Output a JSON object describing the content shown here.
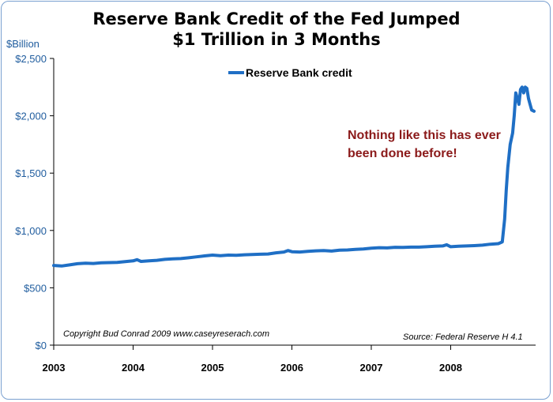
{
  "chart_data": {
    "type": "line",
    "title_line1": "Reserve Bank Credit of the Fed Jumped",
    "title_line2": "$1 Trillion in 3 Months",
    "ylabel": "$Billion",
    "ylim": [
      0,
      2500
    ],
    "yticks": [
      {
        "v": 0,
        "label": "$0"
      },
      {
        "v": 500,
        "label": "$500"
      },
      {
        "v": 1000,
        "label": "$1,000"
      },
      {
        "v": 1500,
        "label": "$1,500"
      },
      {
        "v": 2000,
        "label": "$2,000"
      },
      {
        "v": 2500,
        "label": "$2,500"
      }
    ],
    "xlim": [
      2003.0,
      2009.07
    ],
    "xticks": [
      {
        "v": 2003,
        "label": "2003"
      },
      {
        "v": 2004,
        "label": "2004"
      },
      {
        "v": 2005,
        "label": "2005"
      },
      {
        "v": 2006,
        "label": "2006"
      },
      {
        "v": 2007,
        "label": "2007"
      },
      {
        "v": 2008,
        "label": "2008"
      }
    ],
    "grid": false,
    "legend_position": "top-center",
    "series": [
      {
        "name": "Reserve Bank credit",
        "color": "#1f6fc5",
        "x": [
          2003.0,
          2003.1,
          2003.2,
          2003.3,
          2003.4,
          2003.5,
          2003.6,
          2003.7,
          2003.8,
          2003.9,
          2004.0,
          2004.05,
          2004.1,
          2004.2,
          2004.3,
          2004.4,
          2004.5,
          2004.6,
          2004.7,
          2004.8,
          2004.9,
          2005.0,
          2005.1,
          2005.2,
          2005.3,
          2005.4,
          2005.5,
          2005.6,
          2005.7,
          2005.8,
          2005.9,
          2005.95,
          2006.0,
          2006.1,
          2006.2,
          2006.3,
          2006.4,
          2006.5,
          2006.6,
          2006.7,
          2006.8,
          2006.9,
          2007.0,
          2007.1,
          2007.2,
          2007.3,
          2007.4,
          2007.5,
          2007.6,
          2007.7,
          2007.8,
          2007.9,
          2007.95,
          2008.0,
          2008.1,
          2008.2,
          2008.3,
          2008.4,
          2008.5,
          2008.6,
          2008.65,
          2008.68,
          2008.7,
          2008.72,
          2008.75,
          2008.78,
          2008.8,
          2008.82,
          2008.84,
          2008.86,
          2008.88,
          2008.9,
          2008.92,
          2008.94,
          2008.96,
          2008.98,
          2009.0,
          2009.02,
          2009.05
        ],
        "values": [
          695,
          690,
          700,
          710,
          715,
          712,
          718,
          720,
          722,
          728,
          735,
          745,
          730,
          735,
          740,
          748,
          752,
          755,
          762,
          770,
          778,
          785,
          780,
          785,
          783,
          788,
          790,
          793,
          795,
          805,
          812,
          825,
          815,
          812,
          818,
          822,
          825,
          820,
          828,
          830,
          835,
          838,
          845,
          850,
          848,
          853,
          852,
          855,
          855,
          858,
          862,
          865,
          875,
          858,
          862,
          865,
          868,
          872,
          880,
          885,
          900,
          1100,
          1350,
          1550,
          1750,
          1850,
          2000,
          2200,
          2150,
          2100,
          2230,
          2250,
          2200,
          2250,
          2240,
          2150,
          2100,
          2050,
          2040
        ]
      }
    ],
    "annotation_line1": "Nothing like this has ever",
    "annotation_line2": "been done before!",
    "copyright": "Copyright Bud Conrad  2009 www.caseyreserach.com",
    "source": "Source: Federal Reserve H 4.1"
  }
}
